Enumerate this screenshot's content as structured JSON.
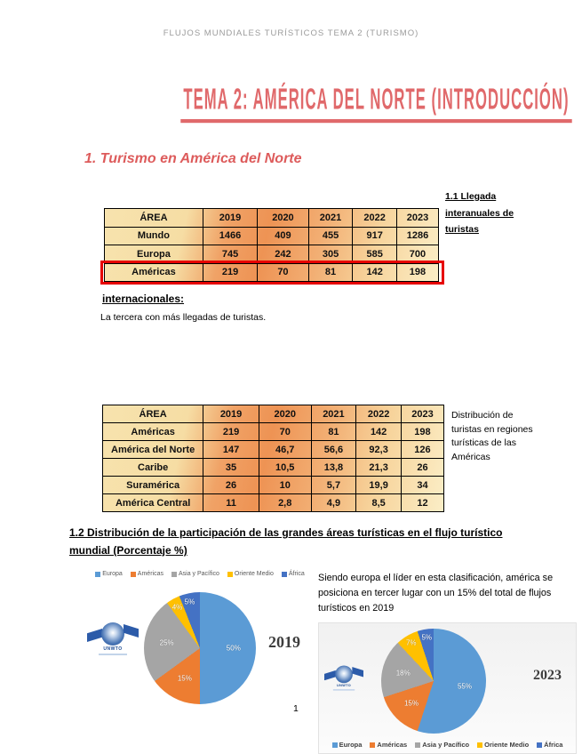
{
  "page": {
    "header": "FLUJOS MUNDIALES TURÍSTICOS TEMA 2 (TURISMO)",
    "title": "TEMA 2: AMÉRICA DEL NORTE (INTRODUCCIÓN)",
    "section_heading": "1. Turismo en América del Norte",
    "note_right_top": "1.1 Llegada interanuales de turistas",
    "note_internacionales": "internacionales:",
    "note_tercera": "La tercera con más llegadas de turistas.",
    "note_right_mid": "Distribución de turistas en regiones turísticas de las Américas",
    "heading_1_2": [
      "1.2 Distribución de la participación de las grandes áreas turísticas en el flujo turístico",
      "mundial (Porcentaje %)"
    ],
    "paragraph_right": "Siendo europa el líder en esta clasificación, américa se posiciona en tercer lugar con un 15% del total de flujos turísticos en 2019",
    "page_number": "1"
  },
  "logo": {
    "text": "UNWTO"
  },
  "colors": {
    "title_accent": "#e0696b",
    "heading_accent": "#dd5b5b",
    "highlight_border": "#e60000",
    "table_gradient_dark": "#ee9354",
    "table_gradient_light": "#fbeec7"
  },
  "table1": {
    "headers": [
      "ÁREA",
      "2019",
      "2020",
      "2021",
      "2022",
      "2023"
    ],
    "rows": [
      {
        "label": "Mundo",
        "values": [
          "1466",
          "409",
          "455",
          "917",
          "1286"
        ],
        "highlighted": false
      },
      {
        "label": "Europa",
        "values": [
          "745",
          "242",
          "305",
          "585",
          "700"
        ],
        "highlighted": false
      },
      {
        "label": "Américas",
        "values": [
          "219",
          "70",
          "81",
          "142",
          "198"
        ],
        "highlighted": true
      }
    ]
  },
  "table2": {
    "headers": [
      "ÁREA",
      "2019",
      "2020",
      "2021",
      "2022",
      "2023"
    ],
    "rows": [
      {
        "label": "Américas",
        "values": [
          "219",
          "70",
          "81",
          "142",
          "198"
        ],
        "highlighted": false
      },
      {
        "label": "América del Norte",
        "values": [
          "147",
          "46,7",
          "56,6",
          "92,3",
          "126"
        ],
        "highlighted": false
      },
      {
        "label": "Caribe",
        "values": [
          "35",
          "10,5",
          "13,8",
          "21,3",
          "26"
        ],
        "highlighted": false
      },
      {
        "label": "Suramérica",
        "values": [
          "26",
          "10",
          "5,7",
          "19,9",
          "34"
        ],
        "highlighted": false
      },
      {
        "label": "América Central",
        "values": [
          "11",
          "2,8",
          "4,9",
          "8,5",
          "12"
        ],
        "highlighted": false
      }
    ]
  },
  "chart_data": [
    {
      "type": "pie",
      "title": "2019",
      "labels": [
        "Europa",
        "Américas",
        "Asia y Pacífico",
        "Oriente Medio",
        "África"
      ],
      "values": [
        50,
        15,
        25,
        4,
        5
      ],
      "colors": [
        "#5b9bd5",
        "#ed7d31",
        "#a5a5a5",
        "#ffc000",
        "#4472c4"
      ],
      "data_labels": "percent",
      "legend_position": "top"
    },
    {
      "type": "pie",
      "title": "2023",
      "labels": [
        "Europa",
        "Américas",
        "Asia y Pacífico",
        "Oriente Medio",
        "África"
      ],
      "values": [
        55,
        15,
        18,
        7,
        5
      ],
      "colors": [
        "#5b9bd5",
        "#ed7d31",
        "#a5a5a5",
        "#ffc000",
        "#4472c4"
      ],
      "data_labels": "percent",
      "legend_position": "bottom"
    }
  ]
}
